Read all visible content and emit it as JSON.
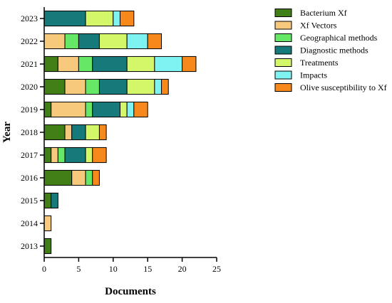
{
  "chart_data": {
    "type": "bar",
    "orientation": "horizontal",
    "stacked": true,
    "xlabel": "Documents",
    "ylabel": "Year",
    "xlim": [
      0,
      25
    ],
    "x_ticks": [
      0,
      5,
      10,
      15,
      20,
      25
    ],
    "categories": [
      "2013",
      "2014",
      "2015",
      "2016",
      "2017",
      "2018",
      "2019",
      "2020",
      "2021",
      "2022",
      "2023"
    ],
    "legend_position": "top-right",
    "grid": false,
    "series": [
      {
        "name": "Bacterium Xf",
        "color": "#3f7f16",
        "values": [
          1,
          0,
          1,
          4,
          1,
          3,
          1,
          3,
          2,
          0,
          0
        ]
      },
      {
        "name": "Xf Vectors",
        "color": "#f7c97c",
        "values": [
          0,
          1,
          0,
          2,
          1,
          1,
          5,
          3,
          3,
          3,
          0
        ]
      },
      {
        "name": "Geographical methods",
        "color": "#66e866",
        "values": [
          0,
          0,
          0,
          1,
          1,
          0,
          1,
          2,
          2,
          2,
          0
        ]
      },
      {
        "name": "Diagnostic methods",
        "color": "#167a7a",
        "values": [
          0,
          0,
          1,
          0,
          3,
          2,
          4,
          4,
          5,
          3,
          6
        ]
      },
      {
        "name": "Treatments",
        "color": "#d4f76a",
        "values": [
          0,
          0,
          0,
          0,
          1,
          2,
          1,
          4,
          4,
          4,
          4
        ]
      },
      {
        "name": "Impacts",
        "color": "#7ff2f2",
        "values": [
          0,
          0,
          0,
          0,
          0,
          0,
          1,
          1,
          4,
          3,
          1
        ]
      },
      {
        "name": "Olive susceptibility to Xf",
        "color": "#f7891c",
        "values": [
          0,
          0,
          0,
          1,
          2,
          1,
          2,
          1,
          2,
          2,
          2
        ]
      }
    ]
  }
}
